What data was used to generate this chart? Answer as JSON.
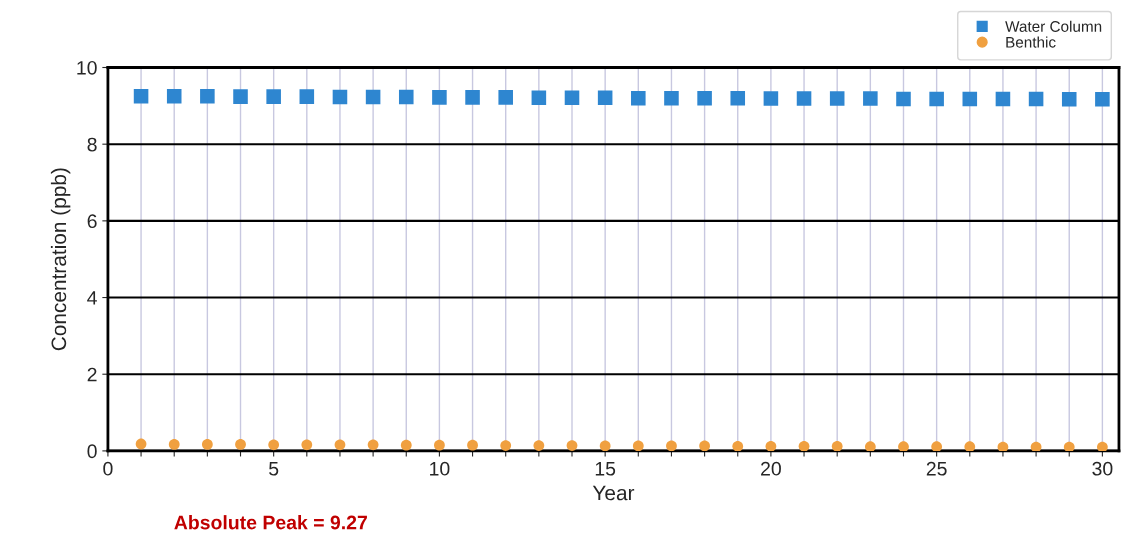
{
  "chart_data": {
    "type": "scatter",
    "xlabel": "Year",
    "ylabel": "Concentration (ppb)",
    "x": [
      1,
      2,
      3,
      4,
      5,
      6,
      7,
      8,
      9,
      10,
      11,
      12,
      13,
      14,
      15,
      16,
      17,
      18,
      19,
      20,
      21,
      22,
      23,
      24,
      25,
      26,
      27,
      28,
      29,
      30
    ],
    "series": [
      {
        "name": "Water Column",
        "color": "#2e86d0",
        "marker": "square",
        "values": [
          9.25,
          9.25,
          9.25,
          9.24,
          9.24,
          9.24,
          9.23,
          9.23,
          9.23,
          9.22,
          9.22,
          9.22,
          9.21,
          9.21,
          9.21,
          9.2,
          9.2,
          9.2,
          9.2,
          9.19,
          9.19,
          9.19,
          9.19,
          9.18,
          9.18,
          9.18,
          9.18,
          9.18,
          9.17,
          9.17
        ]
      },
      {
        "name": "Benthic",
        "color": "#f0a040",
        "marker": "circle",
        "values": [
          0.18,
          0.17,
          0.17,
          0.17,
          0.16,
          0.16,
          0.16,
          0.16,
          0.15,
          0.15,
          0.15,
          0.14,
          0.14,
          0.14,
          0.13,
          0.13,
          0.13,
          0.13,
          0.12,
          0.12,
          0.12,
          0.12,
          0.11,
          0.11,
          0.11,
          0.11,
          0.1,
          0.1,
          0.1,
          0.1
        ]
      }
    ],
    "xlim": [
      0,
      30.5
    ],
    "ylim": [
      0,
      10
    ],
    "xticks": [
      0,
      {
        "value": 1,
        "label": null
      },
      {
        "value": 2,
        "label": null
      },
      {
        "value": 3,
        "label": null
      },
      {
        "value": 4,
        "label": null
      },
      5,
      {
        "value": 6,
        "label": null
      },
      {
        "value": 7,
        "label": null
      },
      {
        "value": 8,
        "label": null
      },
      {
        "value": 9,
        "label": null
      },
      10,
      {
        "value": 11,
        "label": null
      },
      {
        "value": 12,
        "label": null
      },
      {
        "value": 13,
        "label": null
      },
      {
        "value": 14,
        "label": null
      },
      15,
      {
        "value": 16,
        "label": null
      },
      {
        "value": 17,
        "label": null
      },
      {
        "value": 18,
        "label": null
      },
      {
        "value": 19,
        "label": null
      },
      20,
      {
        "value": 21,
        "label": null
      },
      {
        "value": 22,
        "label": null
      },
      {
        "value": 23,
        "label": null
      },
      {
        "value": 24,
        "label": null
      },
      25,
      {
        "value": 26,
        "label": null
      },
      {
        "value": 27,
        "label": null
      },
      {
        "value": 28,
        "label": null
      },
      {
        "value": 29,
        "label": null
      },
      30
    ],
    "yticks": [
      0,
      2,
      4,
      6,
      8,
      10
    ],
    "grid": true,
    "legend": "top right",
    "annotations": [
      "Absolute Peak = 9.27"
    ]
  }
}
